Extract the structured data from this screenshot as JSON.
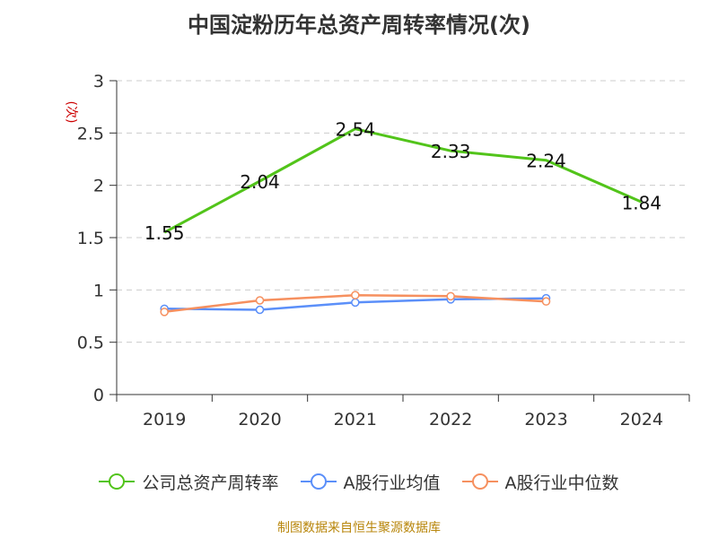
{
  "chart_data": {
    "type": "line",
    "title": "中国淀粉历年总资产周转率情况(次)",
    "ylabel": "(次)",
    "categories": [
      "2019",
      "2020",
      "2021",
      "2022",
      "2023",
      "2024"
    ],
    "ylim": [
      0,
      3
    ],
    "yticks": [
      "0",
      "0.5",
      "1",
      "1.5",
      "2",
      "2.5",
      "3"
    ],
    "grid": true,
    "legend": "bottom",
    "series": [
      {
        "name": "公司总资产周转率",
        "color": "#52c41a",
        "values": [
          1.55,
          2.04,
          2.54,
          2.33,
          2.24,
          1.84
        ],
        "labels": [
          "1.55",
          "2.04",
          "2.54",
          "2.33",
          "2.24",
          "1.84"
        ],
        "markers": false
      },
      {
        "name": "A股行业均值",
        "color": "#5b8ff9",
        "values": [
          0.82,
          0.81,
          0.88,
          0.91,
          0.92,
          null
        ],
        "markers": true
      },
      {
        "name": "A股行业中位数",
        "color": "#f6905f",
        "values": [
          0.79,
          0.9,
          0.95,
          0.94,
          0.89,
          null
        ],
        "markers": true
      }
    ]
  },
  "source": "制图数据来自恒生聚源数据库"
}
